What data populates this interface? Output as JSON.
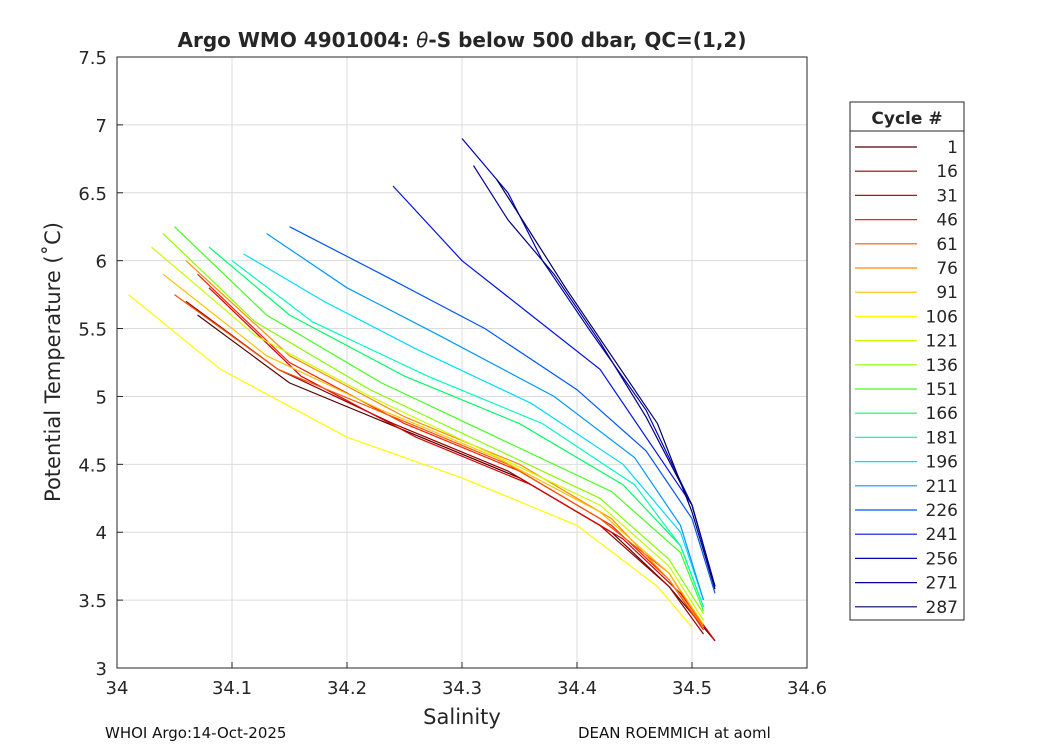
{
  "chart_data": {
    "type": "line",
    "title_prefix": "Argo WMO 4901004: ",
    "title_theta": "θ",
    "title_suffix": "-S below 500 dbar,  QC=(1,2)",
    "xlabel": "Salinity",
    "ylabel": "Potential Temperature (˚C)",
    "xlim": [
      34.0,
      34.6
    ],
    "ylim": [
      3.0,
      7.5
    ],
    "xticks": [
      34.0,
      34.1,
      34.2,
      34.3,
      34.4,
      34.5,
      34.6
    ],
    "xtick_labels": [
      "34",
      "34.1",
      "34.2",
      "34.3",
      "34.4",
      "34.5",
      "34.6"
    ],
    "yticks": [
      3.0,
      3.5,
      4.0,
      4.5,
      5.0,
      5.5,
      6.0,
      6.5,
      7.0,
      7.5
    ],
    "ytick_labels": [
      "3",
      "3.5",
      "4",
      "4.5",
      "5",
      "5.5",
      "6",
      "6.5",
      "7",
      "7.5"
    ],
    "grid": true,
    "legend_title": "Cycle #",
    "legend_position": "right-outside",
    "series": [
      {
        "name": "1",
        "color": "#550000",
        "x": [
          34.07,
          34.15,
          34.25,
          34.35,
          34.43,
          34.48,
          34.52
        ],
        "y": [
          5.6,
          5.1,
          4.75,
          4.4,
          4.0,
          3.6,
          3.2
        ]
      },
      {
        "name": "16",
        "color": "#990000",
        "x": [
          34.06,
          34.14,
          34.24,
          34.34,
          34.42,
          34.48,
          34.51
        ],
        "y": [
          5.7,
          5.2,
          4.8,
          4.45,
          4.05,
          3.6,
          3.25
        ]
      },
      {
        "name": "31",
        "color": "#dd0000",
        "x": [
          34.08,
          34.16,
          34.26,
          34.36,
          34.44,
          34.49,
          34.52
        ],
        "y": [
          5.8,
          5.15,
          4.7,
          4.35,
          3.95,
          3.55,
          3.2
        ]
      },
      {
        "name": "46",
        "color": "#ff2000",
        "x": [
          34.07,
          34.15,
          34.25,
          34.35,
          34.43,
          34.48,
          34.51
        ],
        "y": [
          5.9,
          5.25,
          4.8,
          4.45,
          4.05,
          3.65,
          3.28
        ]
      },
      {
        "name": "61",
        "color": "#ff5500",
        "x": [
          34.05,
          34.14,
          34.24,
          34.34,
          34.42,
          34.48,
          34.51
        ],
        "y": [
          5.75,
          5.2,
          4.85,
          4.5,
          4.1,
          3.7,
          3.3
        ]
      },
      {
        "name": "76",
        "color": "#ff8c00",
        "x": [
          34.06,
          34.15,
          34.25,
          34.35,
          34.43,
          34.48,
          34.51
        ],
        "y": [
          6.0,
          5.3,
          4.85,
          4.5,
          4.1,
          3.65,
          3.3
        ]
      },
      {
        "name": "91",
        "color": "#ffc000",
        "x": [
          34.04,
          34.13,
          34.23,
          34.33,
          34.42,
          34.48,
          34.51
        ],
        "y": [
          5.9,
          5.3,
          4.9,
          4.55,
          4.15,
          3.7,
          3.32
        ]
      },
      {
        "name": "106",
        "color": "#ffff00",
        "x": [
          34.01,
          34.09,
          34.2,
          34.3,
          34.4,
          34.47,
          34.5
        ],
        "y": [
          5.75,
          5.2,
          4.7,
          4.4,
          4.05,
          3.6,
          3.3
        ]
      },
      {
        "name": "121",
        "color": "#c8ff00",
        "x": [
          34.03,
          34.12,
          34.22,
          34.32,
          34.42,
          34.48,
          34.51
        ],
        "y": [
          6.1,
          5.45,
          5.0,
          4.6,
          4.2,
          3.75,
          3.35
        ]
      },
      {
        "name": "136",
        "color": "#88ff00",
        "x": [
          34.04,
          34.12,
          34.22,
          34.32,
          34.42,
          34.48,
          34.51
        ],
        "y": [
          6.2,
          5.55,
          5.05,
          4.65,
          4.25,
          3.8,
          3.4
        ]
      },
      {
        "name": "151",
        "color": "#44ff22",
        "x": [
          34.05,
          34.13,
          34.23,
          34.33,
          34.43,
          34.49,
          34.51
        ],
        "y": [
          6.25,
          5.6,
          5.1,
          4.7,
          4.3,
          3.85,
          3.42
        ]
      },
      {
        "name": "166",
        "color": "#00ff66",
        "x": [
          34.08,
          34.15,
          34.25,
          34.35,
          34.44,
          34.49,
          34.51
        ],
        "y": [
          6.1,
          5.6,
          5.15,
          4.8,
          4.35,
          3.9,
          3.45
        ]
      },
      {
        "name": "181",
        "color": "#00ffbb",
        "x": [
          34.1,
          34.17,
          34.27,
          34.37,
          34.45,
          34.49,
          34.51
        ],
        "y": [
          6.0,
          5.55,
          5.15,
          4.8,
          4.35,
          3.9,
          3.45
        ]
      },
      {
        "name": "196",
        "color": "#00ddff",
        "x": [
          34.11,
          34.18,
          34.26,
          34.36,
          34.44,
          34.49,
          34.51
        ],
        "y": [
          6.05,
          5.7,
          5.35,
          4.95,
          4.5,
          4.0,
          3.5
        ]
      },
      {
        "name": "211",
        "color": "#0099ff",
        "x": [
          34.13,
          34.2,
          34.28,
          34.38,
          34.45,
          34.49,
          34.51
        ],
        "y": [
          6.2,
          5.8,
          5.45,
          5.0,
          4.55,
          4.05,
          3.5
        ]
      },
      {
        "name": "226",
        "color": "#0055ff",
        "x": [
          34.15,
          34.23,
          34.32,
          34.4,
          34.46,
          34.5,
          34.52
        ],
        "y": [
          6.25,
          5.9,
          5.5,
          5.05,
          4.6,
          4.1,
          3.55
        ]
      },
      {
        "name": "241",
        "color": "#0010ee",
        "x": [
          34.24,
          34.3,
          34.36,
          34.42,
          34.46,
          34.5,
          34.52
        ],
        "y": [
          6.55,
          6.0,
          5.6,
          5.2,
          4.7,
          4.2,
          3.6
        ]
      },
      {
        "name": "256",
        "color": "#0000bb",
        "x": [
          34.3,
          34.34,
          34.37,
          34.41,
          34.46,
          34.5,
          34.52
        ],
        "y": [
          6.9,
          6.5,
          6.0,
          5.5,
          4.9,
          4.2,
          3.6
        ]
      },
      {
        "name": "271",
        "color": "#00008b",
        "x": [
          34.31,
          34.34,
          34.38,
          34.42,
          34.46,
          34.5,
          34.52
        ],
        "y": [
          6.7,
          6.3,
          5.9,
          5.4,
          4.85,
          4.2,
          3.6
        ]
      },
      {
        "name": "287",
        "color": "#000066",
        "x": [
          34.33,
          34.36,
          34.39,
          34.43,
          34.47,
          34.5,
          34.52
        ],
        "y": [
          6.6,
          6.2,
          5.8,
          5.3,
          4.8,
          4.15,
          3.58
        ]
      }
    ]
  },
  "footer": {
    "left": "WHOI Argo:14-Oct-2025",
    "right": "DEAN ROEMMICH at aoml"
  }
}
